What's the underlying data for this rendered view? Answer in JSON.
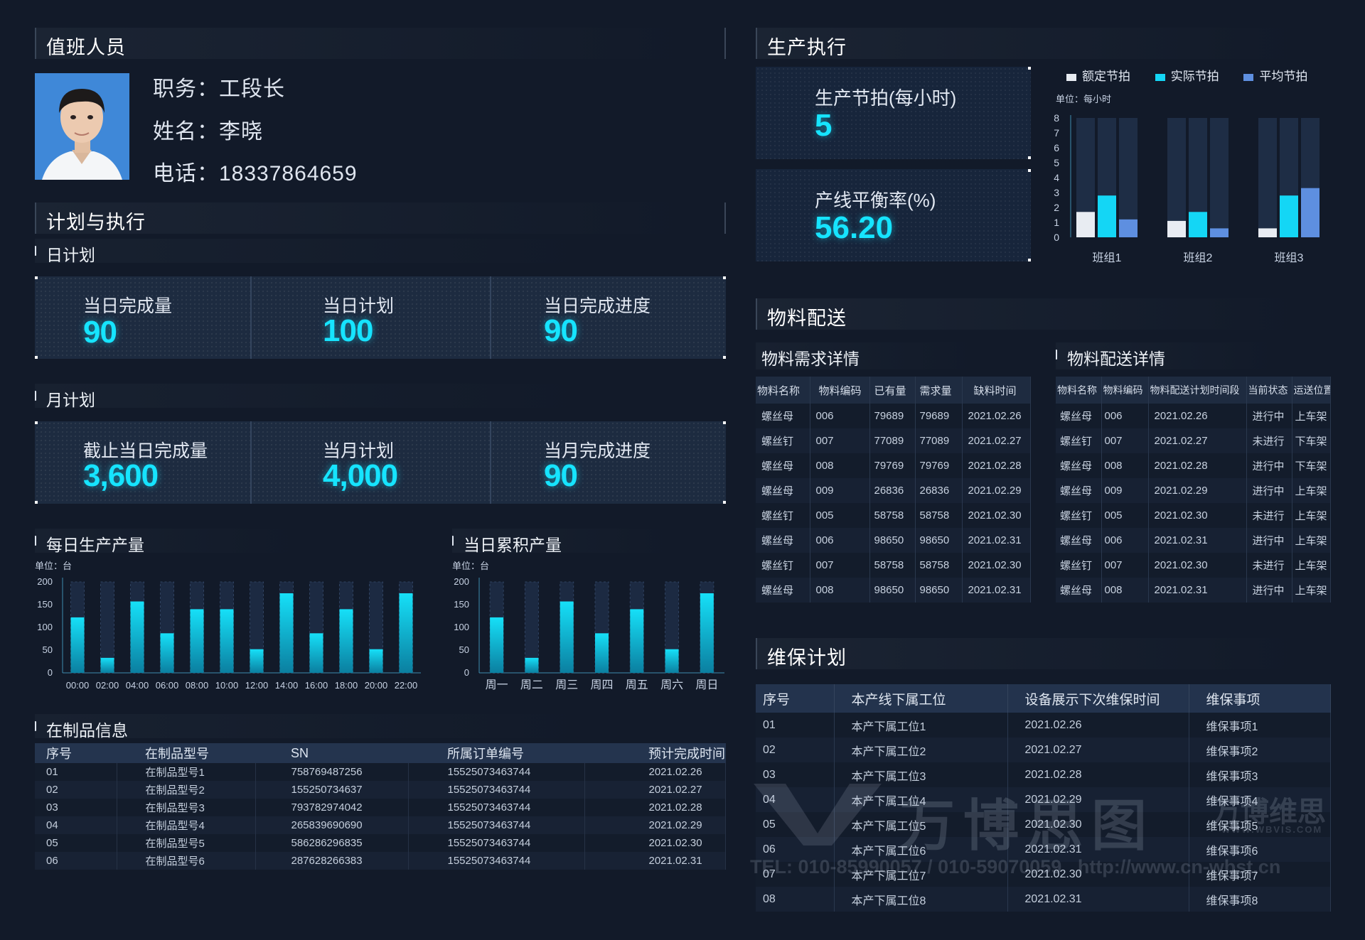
{
  "duty": {
    "title": "值班人员",
    "position": "职务：工段长",
    "name": "姓名：李晓",
    "phone": "电话：18337864659"
  },
  "plan": {
    "title": "计划与执行",
    "daily": {
      "title": "日计划",
      "cells": [
        {
          "label": "当日完成量",
          "value": "90"
        },
        {
          "label": "当日计划",
          "value": "100"
        },
        {
          "label": "当日完成进度",
          "value": "90"
        }
      ]
    },
    "monthly": {
      "title": "月计划",
      "cells": [
        {
          "label": "截止当日完成量",
          "value": "3,600"
        },
        {
          "label": "当月计划",
          "value": "4,000"
        },
        {
          "label": "当月完成进度",
          "value": "90"
        }
      ]
    }
  },
  "daily_output": {
    "title": "每日生产产量",
    "unit": "单位：台"
  },
  "cumulative_output": {
    "title": "当日累积产量",
    "unit": "单位：台"
  },
  "wip": {
    "title": "在制品信息",
    "headers": [
      "序号",
      "在制品型号",
      "SN",
      "所属订单编号",
      "预计完成时间"
    ],
    "rows": [
      [
        "01",
        "在制品型号1",
        "758769487256",
        "15525073463744",
        "2021.02.26"
      ],
      [
        "02",
        "在制品型号2",
        "155250734637",
        "15525073463744",
        "2021.02.27"
      ],
      [
        "03",
        "在制品型号3",
        "793782974042",
        "15525073463744",
        "2021.02.28"
      ],
      [
        "04",
        "在制品型号4",
        "265839690690",
        "15525073463744",
        "2021.02.29"
      ],
      [
        "05",
        "在制品型号5",
        "586286296835",
        "15525073463744",
        "2021.02.30"
      ],
      [
        "06",
        "在制品型号6",
        "287628266383",
        "15525073463744",
        "2021.02.31"
      ]
    ]
  },
  "production": {
    "title": "生产执行",
    "beat_label": "生产节拍(每小时)",
    "beat_value": "5",
    "balance_label": "产线平衡率(%)",
    "balance_value": "56.20",
    "unit": "单位：每小时",
    "legend": [
      "额定节拍",
      "实际节拍",
      "平均节拍"
    ]
  },
  "material": {
    "title": "物料配送",
    "demand": {
      "title": "物料需求详情",
      "headers": [
        "物料名称",
        "物料编码",
        "已有量",
        "需求量",
        "缺料时间"
      ],
      "rows": [
        [
          "螺丝母",
          "006",
          "79689",
          "79689",
          "2021.02.26"
        ],
        [
          "螺丝钉",
          "007",
          "77089",
          "77089",
          "2021.02.27"
        ],
        [
          "螺丝母",
          "008",
          "79769",
          "79769",
          "2021.02.28"
        ],
        [
          "螺丝母",
          "009",
          "26836",
          "26836",
          "2021.02.29"
        ],
        [
          "螺丝钉",
          "005",
          "58758",
          "58758",
          "2021.02.30"
        ],
        [
          "螺丝母",
          "006",
          "98650",
          "98650",
          "2021.02.31"
        ],
        [
          "螺丝钉",
          "007",
          "58758",
          "58758",
          "2021.02.30"
        ],
        [
          "螺丝母",
          "008",
          "98650",
          "98650",
          "2021.02.31"
        ]
      ]
    },
    "delivery": {
      "title": "物料配送详情",
      "headers": [
        "物料名称",
        "物料编码",
        "物料配送计划时间段",
        "当前状态",
        "运送位置"
      ],
      "rows": [
        [
          "螺丝母",
          "006",
          "2021.02.26",
          "进行中",
          "上车架"
        ],
        [
          "螺丝钉",
          "007",
          "2021.02.27",
          "未进行",
          "下车架"
        ],
        [
          "螺丝母",
          "008",
          "2021.02.28",
          "进行中",
          "下车架"
        ],
        [
          "螺丝母",
          "009",
          "2021.02.29",
          "进行中",
          "上车架"
        ],
        [
          "螺丝钉",
          "005",
          "2021.02.30",
          "未进行",
          "上车架"
        ],
        [
          "螺丝母",
          "006",
          "2021.02.31",
          "进行中",
          "上车架"
        ],
        [
          "螺丝钉",
          "007",
          "2021.02.30",
          "未进行",
          "上车架"
        ],
        [
          "螺丝母",
          "008",
          "2021.02.31",
          "进行中",
          "上车架"
        ]
      ]
    }
  },
  "maintenance": {
    "title": "维保计划",
    "headers": [
      "序号",
      "本产线下属工位",
      "设备展示下次维保时间",
      "维保事项"
    ],
    "rows": [
      [
        "01",
        "本产下属工位1",
        "2021.02.26",
        "维保事项1"
      ],
      [
        "02",
        "本产下属工位2",
        "2021.02.27",
        "维保事项2"
      ],
      [
        "03",
        "本产下属工位3",
        "2021.02.28",
        "维保事项3"
      ],
      [
        "04",
        "本产下属工位4",
        "2021.02.29",
        "维保事项4"
      ],
      [
        "05",
        "本产下属工位5",
        "2021.02.30",
        "维保事项5"
      ],
      [
        "06",
        "本产下属工位6",
        "2021.02.31",
        "维保事项6"
      ],
      [
        "07",
        "本产下属工位7",
        "2021.02.30",
        "维保事项7"
      ],
      [
        "08",
        "本产下属工位8",
        "2021.02.31",
        "维保事项8"
      ]
    ]
  },
  "watermark": {
    "brand": "万博思图",
    "brand2": "万博维思",
    "site": "WWW.WBVIS.COM",
    "contact": "TEL: 010-85990057 / 010-59070059   http://www.cn-wbst.cn"
  },
  "chart_data": [
    {
      "type": "bar",
      "title": "每日生产产量",
      "ylabel": "单位：台",
      "ylim": [
        0,
        200
      ],
      "yticks": [
        0,
        50,
        100,
        150,
        200
      ],
      "categories": [
        "00:00",
        "02:00",
        "04:00",
        "06:00",
        "08:00",
        "10:00",
        "12:00",
        "14:00",
        "16:00",
        "18:00",
        "20:00",
        "22:00"
      ],
      "values": [
        122,
        33,
        157,
        87,
        140,
        140,
        52,
        175,
        87,
        140,
        52,
        175
      ]
    },
    {
      "type": "bar",
      "title": "当日累积产量",
      "ylabel": "单位：台",
      "ylim": [
        0,
        200
      ],
      "yticks": [
        0,
        50,
        100,
        150,
        200
      ],
      "categories": [
        "周一",
        "周二",
        "周三",
        "周四",
        "周五",
        "周六",
        "周日"
      ],
      "values": [
        122,
        33,
        157,
        87,
        140,
        52,
        175
      ]
    },
    {
      "type": "bar",
      "title": "生产执行",
      "ylabel": "单位：每小时",
      "ylim": [
        0,
        8
      ],
      "yticks": [
        0,
        1,
        2,
        3,
        4,
        5,
        6,
        7,
        8
      ],
      "categories": [
        "班组1",
        "班组2",
        "班组3"
      ],
      "series": [
        {
          "name": "额定节拍",
          "values": [
            1.7,
            1.1,
            0.6
          ],
          "color": "#e8ecf2"
        },
        {
          "name": "实际节拍",
          "values": [
            2.8,
            1.7,
            2.8
          ],
          "color": "#14d6f5"
        },
        {
          "name": "平均节拍",
          "values": [
            1.2,
            0.6,
            3.3
          ],
          "color": "#5e8fe0"
        }
      ]
    }
  ]
}
